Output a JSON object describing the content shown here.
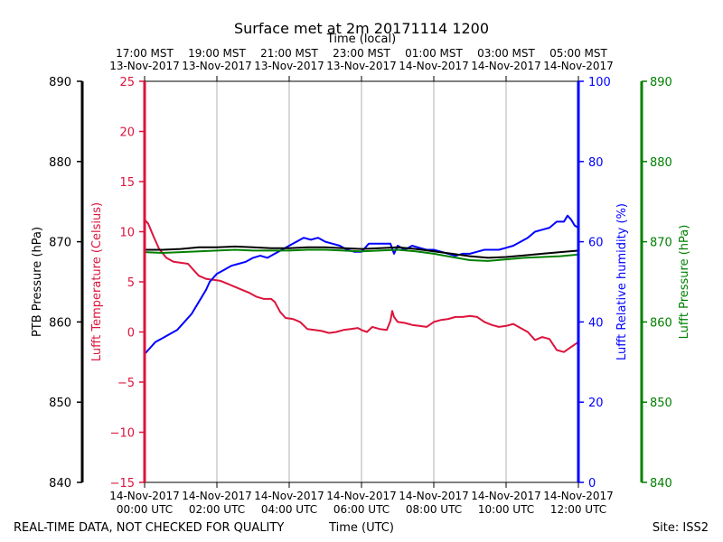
{
  "chart_data": {
    "type": "line",
    "title": "Surface met at 2m 20171114 1200",
    "top_xlabel": "Time (local)",
    "xlabel": "Time (UTC)",
    "footer_left": "REAL-TIME DATA, NOT CHECKED FOR QUALITY",
    "footer_right": "Site: ISS2",
    "xlim": [
      0,
      12
    ],
    "x_ticks_bottom": [
      {
        "x": 0,
        "line1": "14-Nov-2017",
        "line2": "00:00 UTC"
      },
      {
        "x": 2,
        "line1": "14-Nov-2017",
        "line2": "02:00 UTC"
      },
      {
        "x": 4,
        "line1": "14-Nov-2017",
        "line2": "04:00 UTC"
      },
      {
        "x": 6,
        "line1": "14-Nov-2017",
        "line2": "06:00 UTC"
      },
      {
        "x": 8,
        "line1": "14-Nov-2017",
        "line2": "08:00 UTC"
      },
      {
        "x": 10,
        "line1": "14-Nov-2017",
        "line2": "10:00 UTC"
      },
      {
        "x": 12,
        "line1": "14-Nov-2017",
        "line2": "12:00 UTC"
      }
    ],
    "x_ticks_top": [
      {
        "x": 0,
        "line1": "17:00 MST",
        "line2": "13-Nov-2017"
      },
      {
        "x": 2,
        "line1": "19:00 MST",
        "line2": "13-Nov-2017"
      },
      {
        "x": 4,
        "line1": "21:00 MST",
        "line2": "13-Nov-2017"
      },
      {
        "x": 6,
        "line1": "23:00 MST",
        "line2": "13-Nov-2017"
      },
      {
        "x": 8,
        "line1": "01:00 MST",
        "line2": "14-Nov-2017"
      },
      {
        "x": 10,
        "line1": "03:00 MST",
        "line2": "14-Nov-2017"
      },
      {
        "x": 12,
        "line1": "05:00 MST",
        "line2": "14-Nov-2017"
      }
    ],
    "axes": [
      {
        "id": "ptb",
        "label": "PTB Pressure (hPa)",
        "color": "#000000",
        "range": [
          840,
          890
        ],
        "ticks": [
          840,
          850,
          860,
          870,
          880,
          890
        ],
        "labels": [
          "840",
          "850",
          "860",
          "870",
          "880",
          "890"
        ]
      },
      {
        "id": "temp",
        "label": "Lufft Temperature (Celsius)",
        "color": "#dc143c",
        "range": [
          -15,
          25
        ],
        "ticks": [
          -15,
          -10,
          -5,
          0,
          5,
          10,
          15,
          20,
          25
        ],
        "labels": [
          "−15",
          "−10",
          "−5",
          "0",
          "5",
          "10",
          "15",
          "20",
          "25"
        ]
      },
      {
        "id": "rh",
        "label": "Lufft Relative humidity (%)",
        "color": "#0000ff",
        "range": [
          0,
          100
        ],
        "ticks": [
          0,
          20,
          40,
          60,
          80,
          100
        ],
        "labels": [
          "0",
          "20",
          "40",
          "60",
          "80",
          "100"
        ]
      },
      {
        "id": "lp",
        "label": "Lufft Pressure (hPa)",
        "color": "#008000",
        "range": [
          840,
          890
        ],
        "ticks": [
          840,
          850,
          860,
          870,
          880,
          890
        ],
        "labels": [
          "840",
          "850",
          "860",
          "870",
          "880",
          "890"
        ]
      }
    ],
    "series": [
      {
        "name": "Lufft Temperature",
        "axis": "temp",
        "color": "#dc143c",
        "x": [
          0,
          0.1,
          0.25,
          0.4,
          0.6,
          0.8,
          1.0,
          1.2,
          1.4,
          1.5,
          1.7,
          1.9,
          2.1,
          2.3,
          2.5,
          2.7,
          2.9,
          3.1,
          3.3,
          3.5,
          3.6,
          3.75,
          3.9,
          4.1,
          4.3,
          4.5,
          4.7,
          4.9,
          5.1,
          5.3,
          5.5,
          5.7,
          5.9,
          6.0,
          6.15,
          6.3,
          6.5,
          6.7,
          6.8,
          6.85,
          6.9,
          7.0,
          7.2,
          7.4,
          7.6,
          7.8,
          8.0,
          8.2,
          8.4,
          8.6,
          8.8,
          9.0,
          9.2,
          9.4,
          9.6,
          9.8,
          10.0,
          10.2,
          10.4,
          10.6,
          10.8,
          11.0,
          11.2,
          11.4,
          11.6,
          11.8,
          12.0
        ],
        "values": [
          11.2,
          10.8,
          9.5,
          8.3,
          7.4,
          7.0,
          6.9,
          6.8,
          6.0,
          5.6,
          5.3,
          5.2,
          5.1,
          4.8,
          4.5,
          4.2,
          3.9,
          3.5,
          3.3,
          3.3,
          3.0,
          2.0,
          1.4,
          1.3,
          1.0,
          0.3,
          0.2,
          0.1,
          -0.1,
          0.0,
          0.2,
          0.3,
          0.4,
          0.2,
          0.0,
          0.5,
          0.3,
          0.2,
          1.1,
          2.1,
          1.5,
          1.0,
          0.9,
          0.7,
          0.6,
          0.5,
          1.0,
          1.2,
          1.3,
          1.5,
          1.5,
          1.6,
          1.5,
          1.0,
          0.7,
          0.5,
          0.6,
          0.8,
          0.4,
          0.0,
          -0.8,
          -0.5,
          -0.7,
          -1.8,
          -2.0,
          -1.5,
          -1.0
        ]
      },
      {
        "name": "Lufft Relative humidity",
        "axis": "rh",
        "color": "#0000ff",
        "x": [
          0,
          0.1,
          0.3,
          0.5,
          0.7,
          0.9,
          1.1,
          1.3,
          1.5,
          1.7,
          1.8,
          1.9,
          2.0,
          2.2,
          2.4,
          2.6,
          2.8,
          3.0,
          3.2,
          3.4,
          3.6,
          3.8,
          4.0,
          4.2,
          4.4,
          4.6,
          4.8,
          5.0,
          5.2,
          5.4,
          5.6,
          5.8,
          6.0,
          6.1,
          6.2,
          6.4,
          6.6,
          6.8,
          6.9,
          7.0,
          7.2,
          7.4,
          7.6,
          7.8,
          8.0,
          8.2,
          8.4,
          8.6,
          8.8,
          9.0,
          9.2,
          9.4,
          9.6,
          9.8,
          10.0,
          10.2,
          10.4,
          10.6,
          10.8,
          11.0,
          11.2,
          11.4,
          11.6,
          11.7,
          11.8,
          11.9,
          12.0
        ],
        "values": [
          32,
          33,
          35,
          36,
          37,
          38,
          40,
          42,
          45,
          48,
          50,
          51,
          52,
          53,
          54,
          54.5,
          55,
          56,
          56.5,
          56,
          57,
          58,
          59,
          60,
          61,
          60.5,
          61,
          60,
          59.5,
          59,
          58,
          57.5,
          57.5,
          58.5,
          59.5,
          59.5,
          59.5,
          59.5,
          57,
          59,
          58,
          59,
          58.5,
          58,
          58,
          57.5,
          57,
          56.5,
          57,
          57,
          57.5,
          58,
          58,
          58,
          58.5,
          59,
          60,
          61,
          62.5,
          63,
          63.5,
          65,
          65,
          66.5,
          65.5,
          64,
          63.5
        ]
      },
      {
        "name": "PTB Pressure",
        "axis": "ptb",
        "color": "#000000",
        "x": [
          0,
          0.5,
          1.0,
          1.5,
          2.0,
          2.5,
          3.0,
          3.5,
          4.0,
          4.5,
          5.0,
          5.5,
          6.0,
          6.5,
          7.0,
          7.5,
          8.0,
          8.5,
          9.0,
          9.5,
          10.0,
          10.5,
          11.0,
          11.5,
          12.0
        ],
        "values": [
          869.0,
          869.0,
          869.1,
          869.3,
          869.3,
          869.4,
          869.3,
          869.2,
          869.2,
          869.3,
          869.3,
          869.2,
          869.1,
          869.2,
          869.3,
          869.1,
          868.8,
          868.5,
          868.2,
          868.0,
          868.1,
          868.3,
          868.5,
          868.7,
          868.9
        ]
      },
      {
        "name": "Lufft Pressure",
        "axis": "lp",
        "color": "#008000",
        "x": [
          0,
          0.5,
          1.0,
          1.5,
          2.0,
          2.5,
          3.0,
          3.5,
          4.0,
          4.5,
          5.0,
          5.5,
          6.0,
          6.5,
          7.0,
          7.5,
          8.0,
          8.5,
          9.0,
          9.5,
          10.0,
          10.5,
          11.0,
          11.5,
          12.0
        ],
        "values": [
          868.7,
          868.6,
          868.7,
          868.8,
          868.9,
          869.0,
          868.9,
          868.9,
          868.9,
          869.0,
          869.0,
          868.9,
          868.8,
          868.9,
          869.0,
          868.8,
          868.5,
          868.1,
          867.7,
          867.6,
          867.8,
          868.0,
          868.1,
          868.2,
          868.4
        ]
      }
    ]
  }
}
